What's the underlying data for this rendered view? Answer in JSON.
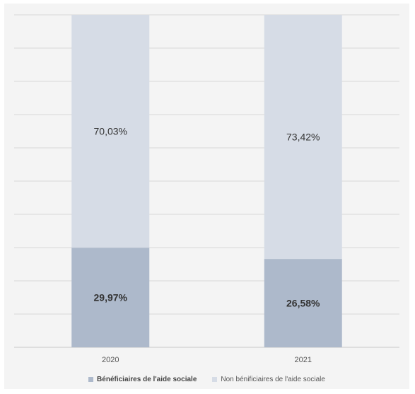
{
  "chart_data": {
    "type": "bar",
    "stacked": true,
    "percent_stacked": true,
    "categories": [
      "2020",
      "2021"
    ],
    "series": [
      {
        "name": "Bénéficiaires de l'aide sociale",
        "values": [
          29.97,
          26.58
        ],
        "labels": [
          "29,97%",
          "26,58%"
        ],
        "color": "#adb9cb"
      },
      {
        "name": "Non bénificiaires de l'aide sociale",
        "values": [
          70.03,
          73.42
        ],
        "labels": [
          "70,03%",
          "73,42%"
        ],
        "color": "#d6dce6"
      }
    ],
    "ylim": [
      0,
      100
    ],
    "grid": true,
    "legend_position": "bottom",
    "colors": {
      "background": "#f4f4f4",
      "gridline": "#d9d9d9",
      "label_text": "#333333"
    }
  }
}
